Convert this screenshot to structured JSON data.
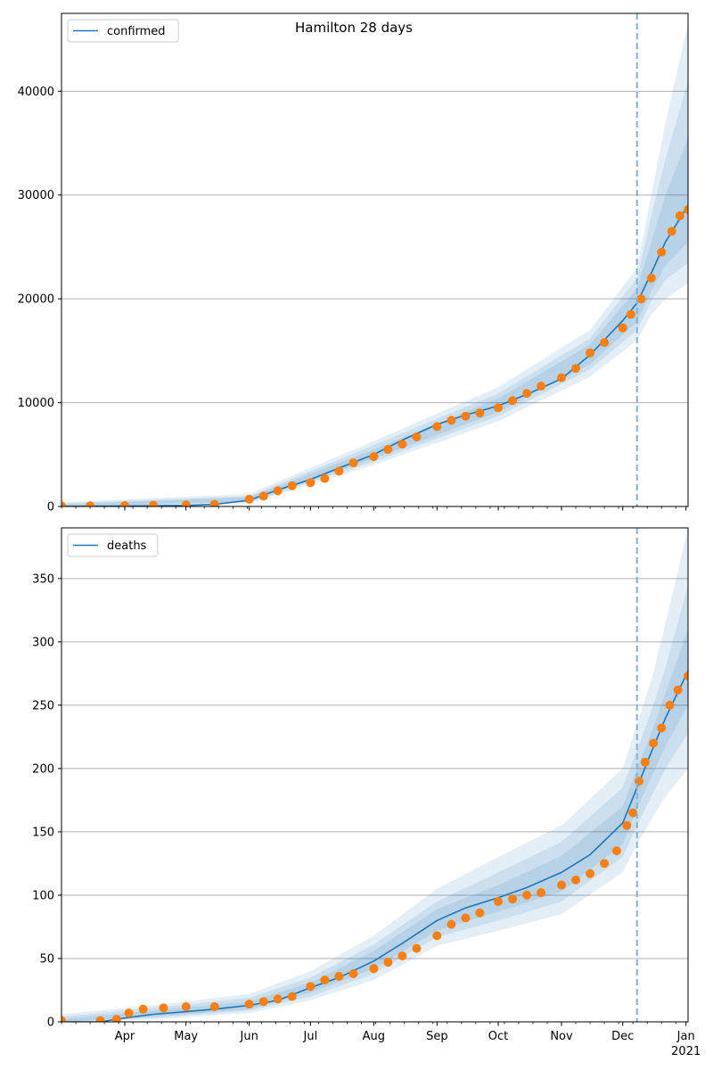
{
  "title": "Hamilton 28 days",
  "colors": {
    "model": "#1f77b4",
    "observed": "#ff7f0e",
    "band": "#1f77b4",
    "grid": "#b0b0b0",
    "forecast_marker": "#7fb2d8"
  },
  "forecast_date": "2020-12-08",
  "x_tick_labels": [
    "Apr",
    "May",
    "Jun",
    "Jul",
    "Aug",
    "Sep",
    "Oct",
    "Nov",
    "Dec",
    "Jan"
  ],
  "x_tick_year_label": "2021",
  "chart_data": [
    {
      "type": "line",
      "name": "confirmed",
      "legend": "confirmed",
      "legend_position": "top-left",
      "grid": "horizontal",
      "xlim": [
        "2020-03-01",
        "2021-01-02"
      ],
      "ylim": [
        0,
        47500
      ],
      "y_ticks": [
        0,
        10000,
        20000,
        30000,
        40000
      ],
      "model": {
        "x": [
          "2020-03-01",
          "2020-04-01",
          "2020-05-01",
          "2020-05-15",
          "2020-06-01",
          "2020-06-15",
          "2020-07-01",
          "2020-07-15",
          "2020-08-01",
          "2020-08-15",
          "2020-09-01",
          "2020-09-15",
          "2020-10-01",
          "2020-10-15",
          "2020-11-01",
          "2020-11-15",
          "2020-12-01",
          "2020-12-08",
          "2020-12-15",
          "2020-12-22",
          "2021-01-02"
        ],
        "y": [
          0,
          50,
          100,
          200,
          600,
          1600,
          2600,
          3700,
          5000,
          6400,
          7900,
          8800,
          9700,
          10800,
          12300,
          14600,
          17900,
          19600,
          22500,
          25500,
          29000
        ]
      },
      "bands": [
        {
          "x": [
            "2020-03-01",
            "2020-06-01",
            "2020-08-01",
            "2020-10-01",
            "2020-11-15",
            "2020-12-08",
            "2020-12-15",
            "2020-12-22",
            "2021-01-02"
          ],
          "low": [
            0,
            300,
            4000,
            8200,
            12500,
            16000,
            18500,
            20000,
            21500
          ],
          "high": [
            400,
            1200,
            6300,
            11500,
            17000,
            23000,
            30000,
            37000,
            46500
          ]
        },
        {
          "x": [
            "2020-03-01",
            "2020-06-01",
            "2020-08-01",
            "2020-10-01",
            "2020-11-15",
            "2020-12-08",
            "2020-12-15",
            "2020-12-22",
            "2021-01-02"
          ],
          "low": [
            0,
            400,
            4300,
            8700,
            13200,
            17000,
            19800,
            21800,
            23500
          ],
          "high": [
            300,
            1000,
            5900,
            10900,
            16200,
            22000,
            28000,
            33500,
            41000
          ]
        },
        {
          "x": [
            "2020-03-01",
            "2020-06-01",
            "2020-08-01",
            "2020-10-01",
            "2020-11-15",
            "2020-12-08",
            "2020-12-15",
            "2020-12-22",
            "2021-01-02"
          ],
          "low": [
            0,
            450,
            4600,
            9100,
            13700,
            17800,
            20800,
            23200,
            25500
          ],
          "high": [
            200,
            900,
            5500,
            10400,
            15600,
            21000,
            25500,
            30000,
            35500
          ]
        }
      ],
      "observed": {
        "x": [
          "2020-03-01",
          "2020-03-15",
          "2020-04-01",
          "2020-04-15",
          "2020-05-01",
          "2020-05-15",
          "2020-06-01",
          "2020-06-08",
          "2020-06-15",
          "2020-06-22",
          "2020-07-01",
          "2020-07-08",
          "2020-07-15",
          "2020-07-22",
          "2020-08-01",
          "2020-08-08",
          "2020-08-15",
          "2020-08-22",
          "2020-09-01",
          "2020-09-08",
          "2020-09-15",
          "2020-09-22",
          "2020-10-01",
          "2020-10-08",
          "2020-10-15",
          "2020-10-22",
          "2020-11-01",
          "2020-11-08",
          "2020-11-15",
          "2020-11-22",
          "2020-12-01",
          "2020-12-05",
          "2020-12-10",
          "2020-12-15",
          "2020-12-20",
          "2020-12-25",
          "2020-12-29",
          "2021-01-02"
        ],
        "y": [
          50,
          70,
          90,
          120,
          150,
          200,
          700,
          1000,
          1500,
          2000,
          2300,
          2700,
          3400,
          4200,
          4800,
          5500,
          6000,
          6700,
          7700,
          8300,
          8700,
          9000,
          9500,
          10200,
          10900,
          11600,
          12400,
          13300,
          14800,
          15800,
          17200,
          18500,
          20000,
          22000,
          24500,
          26500,
          28000,
          28600
        ]
      }
    },
    {
      "type": "line",
      "name": "deaths",
      "legend": "deaths",
      "legend_position": "top-left",
      "grid": "horizontal",
      "xlim": [
        "2020-03-01",
        "2021-01-02"
      ],
      "ylim": [
        0,
        390
      ],
      "y_ticks": [
        0,
        50,
        100,
        150,
        200,
        250,
        300,
        350
      ],
      "model": {
        "x": [
          "2020-03-01",
          "2020-03-20",
          "2020-04-01",
          "2020-04-15",
          "2020-05-01",
          "2020-05-15",
          "2020-06-01",
          "2020-06-15",
          "2020-07-01",
          "2020-07-15",
          "2020-08-01",
          "2020-08-15",
          "2020-09-01",
          "2020-09-15",
          "2020-10-01",
          "2020-10-15",
          "2020-11-01",
          "2020-11-15",
          "2020-12-01",
          "2020-12-08",
          "2020-12-15",
          "2020-12-22",
          "2021-01-02"
        ],
        "y": [
          0,
          0,
          3,
          6,
          8,
          10,
          13,
          17,
          27,
          35,
          48,
          62,
          80,
          90,
          98,
          106,
          118,
          132,
          157,
          185,
          213,
          240,
          277
        ]
      },
      "bands": [
        {
          "x": [
            "2020-03-01",
            "2020-04-15",
            "2020-06-01",
            "2020-07-01",
            "2020-08-01",
            "2020-09-01",
            "2020-10-01",
            "2020-11-01",
            "2020-12-01",
            "2020-12-08",
            "2020-12-15",
            "2020-12-22",
            "2021-01-02"
          ],
          "low": [
            0,
            2,
            7,
            17,
            33,
            60,
            72,
            85,
            118,
            140,
            160,
            178,
            200
          ],
          "high": [
            6,
            13,
            22,
            40,
            68,
            105,
            130,
            155,
            200,
            235,
            270,
            315,
            390
          ]
        },
        {
          "x": [
            "2020-03-01",
            "2020-04-15",
            "2020-06-01",
            "2020-07-01",
            "2020-08-01",
            "2020-09-01",
            "2020-10-01",
            "2020-11-01",
            "2020-12-01",
            "2020-12-08",
            "2020-12-15",
            "2020-12-22",
            "2021-01-02"
          ],
          "low": [
            0,
            3,
            9,
            20,
            38,
            67,
            80,
            95,
            130,
            155,
            178,
            200,
            228
          ],
          "high": [
            4,
            11,
            19,
            35,
            61,
            95,
            118,
            142,
            185,
            215,
            245,
            280,
            345
          ]
        },
        {
          "x": [
            "2020-03-01",
            "2020-04-15",
            "2020-06-01",
            "2020-07-01",
            "2020-08-01",
            "2020-09-01",
            "2020-10-01",
            "2020-11-01",
            "2020-12-01",
            "2020-12-08",
            "2020-12-15",
            "2020-12-22",
            "2021-01-02"
          ],
          "low": [
            0,
            4,
            10,
            23,
            42,
            72,
            87,
            103,
            140,
            168,
            193,
            218,
            250
          ],
          "high": [
            2,
            9,
            16,
            31,
            56,
            89,
            108,
            131,
            170,
            200,
            228,
            260,
            310
          ]
        }
      ],
      "observed": {
        "x": [
          "2020-03-01",
          "2020-03-20",
          "2020-03-28",
          "2020-04-03",
          "2020-04-10",
          "2020-04-20",
          "2020-05-01",
          "2020-05-15",
          "2020-06-01",
          "2020-06-08",
          "2020-06-15",
          "2020-06-22",
          "2020-07-01",
          "2020-07-08",
          "2020-07-15",
          "2020-07-22",
          "2020-08-01",
          "2020-08-08",
          "2020-08-15",
          "2020-08-22",
          "2020-09-01",
          "2020-09-08",
          "2020-09-15",
          "2020-09-22",
          "2020-10-01",
          "2020-10-08",
          "2020-10-15",
          "2020-10-22",
          "2020-11-01",
          "2020-11-08",
          "2020-11-15",
          "2020-11-22",
          "2020-11-28",
          "2020-12-03",
          "2020-12-06",
          "2020-12-09",
          "2020-12-12",
          "2020-12-16",
          "2020-12-20",
          "2020-12-24",
          "2020-12-28",
          "2021-01-02"
        ],
        "y": [
          1,
          1,
          2,
          7,
          10,
          11,
          12,
          12,
          14,
          16,
          18,
          20,
          28,
          33,
          36,
          38,
          42,
          47,
          52,
          58,
          68,
          77,
          82,
          86,
          95,
          97,
          100,
          102,
          108,
          112,
          117,
          125,
          135,
          155,
          165,
          190,
          205,
          220,
          232,
          250,
          262,
          273
        ]
      }
    }
  ]
}
